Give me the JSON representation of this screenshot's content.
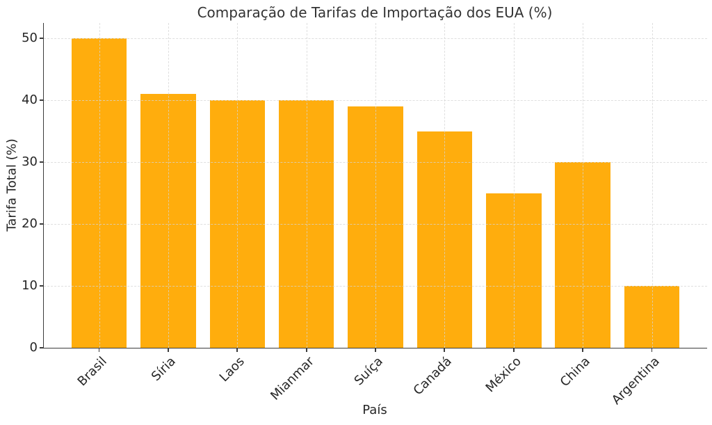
{
  "chart_data": {
    "type": "bar",
    "title": "Comparação de Tarifas de Importação dos EUA (%)",
    "xlabel": "País",
    "ylabel": "Tarifa Total (%)",
    "categories": [
      "Brasil",
      "Síria",
      "Laos",
      "Mianmar",
      "Suíça",
      "Canadá",
      "México",
      "China",
      "Argentina"
    ],
    "values": [
      50,
      41,
      40,
      40,
      39,
      35,
      25,
      30,
      10
    ],
    "ylim": [
      0,
      52.5
    ],
    "yticks": [
      0,
      10,
      20,
      30,
      40,
      50
    ],
    "grid": true,
    "grid_style": "dashed",
    "grid_above_bars": true,
    "legend": false,
    "bar_width_fraction": 0.8,
    "colors": {
      "bar": "#FFAD0D",
      "grid": "#d5d5d5",
      "axis": "#3b3b3b",
      "text": "#262626",
      "background": "#ffffff"
    }
  }
}
